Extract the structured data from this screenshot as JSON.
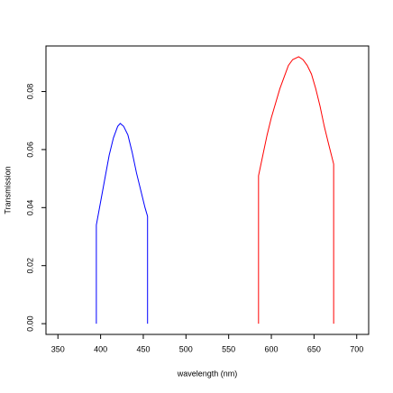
{
  "chart_data": {
    "type": "line",
    "xlabel": "wavelength (nm)",
    "ylabel": "Transmission",
    "xlim": [
      336,
      714
    ],
    "xticks": [
      350,
      400,
      450,
      500,
      550,
      600,
      650,
      700
    ],
    "ylim": [
      -0.0037,
      0.0957
    ],
    "yticks": [
      {
        "value": 0,
        "label": "0.00"
      },
      0.02,
      0.04,
      0.06,
      0.08
    ],
    "series": [
      {
        "color": "#0000ff",
        "x": [
          395,
          395,
          400,
          405,
          410,
          415,
          420,
          423,
          427,
          432,
          437,
          442,
          447,
          452,
          455,
          455
        ],
        "values": [
          0,
          0.034,
          0.042,
          0.05,
          0.058,
          0.064,
          0.068,
          0.069,
          0.068,
          0.065,
          0.059,
          0.052,
          0.046,
          0.04,
          0.037,
          0
        ]
      },
      {
        "color": "#ff0000",
        "x": [
          585,
          585,
          590,
          595,
          600,
          605,
          610,
          615,
          620,
          625,
          632,
          637,
          642,
          647,
          652,
          657,
          662,
          667,
          673,
          673
        ],
        "values": [
          0,
          0.051,
          0.058,
          0.065,
          0.071,
          0.076,
          0.081,
          0.085,
          0.089,
          0.091,
          0.092,
          0.091,
          0.089,
          0.086,
          0.081,
          0.075,
          0.068,
          0.062,
          0.055,
          0
        ]
      }
    ]
  }
}
